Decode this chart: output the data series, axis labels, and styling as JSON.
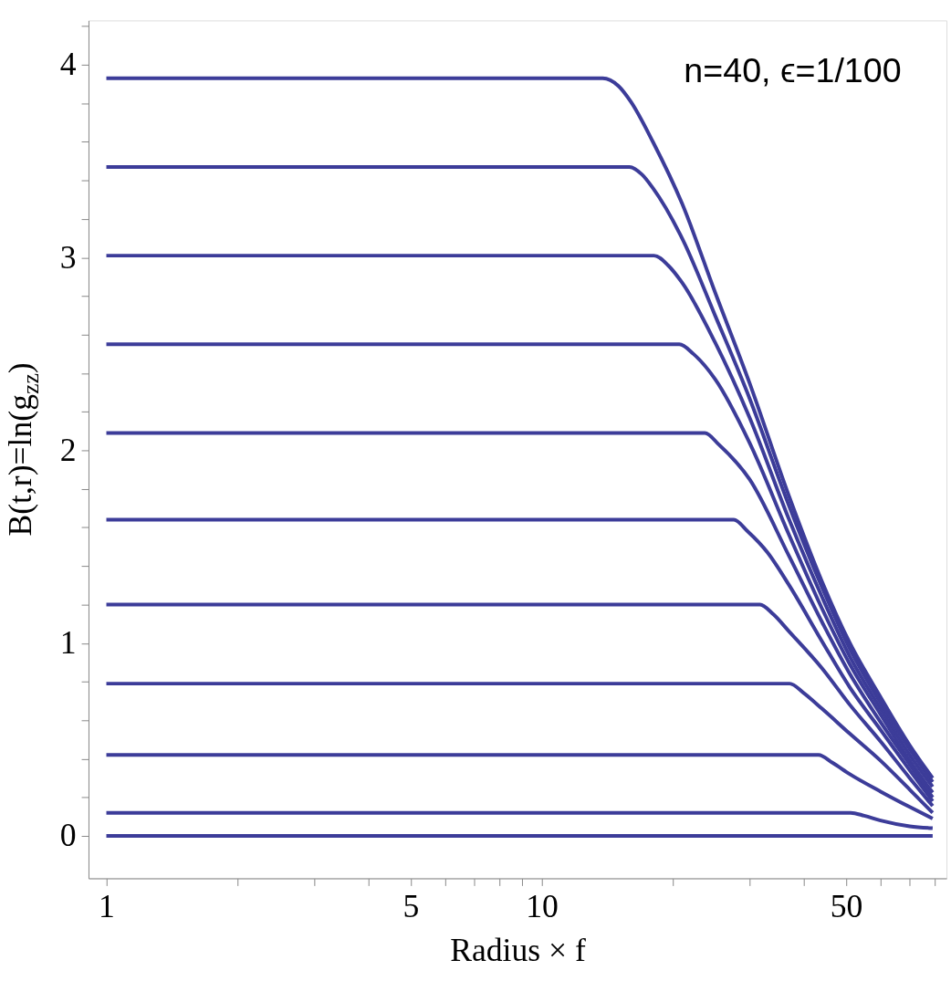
{
  "chart_data": {
    "type": "line",
    "xlabel": "Radius × f",
    "ylabel": "B(t,r)=ln(g$_{zz}$)",
    "annotations": [
      "n=40, ϵ=1/100"
    ],
    "log": "x",
    "xlim": [
      0.91,
      85
    ],
    "ylim": [
      -0.22,
      4.23
    ],
    "xticks": [
      1,
      {
        "value": 2,
        "label": null
      },
      {
        "value": 3,
        "label": null
      },
      {
        "value": 4,
        "label": null
      },
      5,
      {
        "value": 6,
        "label": null
      },
      {
        "value": 7,
        "label": null
      },
      {
        "value": 8,
        "label": null
      },
      {
        "value": 9,
        "label": null
      },
      10,
      {
        "value": 20,
        "label": null
      },
      {
        "value": 30,
        "label": null
      },
      {
        "value": 40,
        "label": null
      },
      50,
      {
        "value": 60,
        "label": null
      },
      {
        "value": 70,
        "label": null
      },
      {
        "value": 80,
        "label": null
      }
    ],
    "yticks": [
      0,
      {
        "value": 0.2,
        "label": null
      },
      {
        "value": 0.4,
        "label": null
      },
      {
        "value": 0.6,
        "label": null
      },
      {
        "value": 0.8,
        "label": null
      },
      1,
      {
        "value": 1.2,
        "label": null
      },
      {
        "value": 1.4,
        "label": null
      },
      {
        "value": 1.6,
        "label": null
      },
      {
        "value": 1.8,
        "label": null
      },
      2,
      {
        "value": 2.2,
        "label": null
      },
      {
        "value": 2.4,
        "label": null
      },
      {
        "value": 2.6,
        "label": null
      },
      {
        "value": 2.8,
        "label": null
      },
      3,
      {
        "value": 3.2,
        "label": null
      },
      {
        "value": 3.4,
        "label": null
      },
      {
        "value": 3.6,
        "label": null
      },
      {
        "value": 3.8,
        "label": null
      },
      4,
      {
        "value": 4.2,
        "label": null
      }
    ],
    "series": [
      {
        "color": "#3c3c99",
        "x": [
          1,
          13.8,
          15,
          16,
          18,
          21,
          25,
          30,
          37,
          44,
          51,
          60,
          70,
          79
        ],
        "values": [
          3.93,
          3.93,
          3.89,
          3.81,
          3.6,
          3.28,
          2.82,
          2.35,
          1.76,
          1.32,
          1.0,
          0.72,
          0.47,
          0.3
        ]
      },
      {
        "color": "#3c3c99",
        "x": [
          1,
          15.9,
          17,
          18,
          21,
          25,
          30,
          37,
          44,
          51,
          60,
          70,
          79
        ],
        "values": [
          3.47,
          3.47,
          3.43,
          3.36,
          3.1,
          2.7,
          2.27,
          1.71,
          1.29,
          0.97,
          0.69,
          0.45,
          0.28
        ]
      },
      {
        "color": "#3c3c99",
        "x": [
          1,
          18.1,
          19.5,
          21,
          25,
          30,
          37,
          44,
          51,
          60,
          70,
          79
        ],
        "values": [
          3.01,
          3.01,
          2.96,
          2.87,
          2.56,
          2.17,
          1.64,
          1.24,
          0.93,
          0.66,
          0.42,
          0.255
        ]
      },
      {
        "color": "#3c3c99",
        "x": [
          1,
          20.7,
          22.3,
          25,
          30,
          37,
          44,
          51,
          60,
          70,
          79
        ],
        "values": [
          2.55,
          2.55,
          2.5,
          2.37,
          2.04,
          1.56,
          1.18,
          0.89,
          0.63,
          0.39,
          0.225
        ]
      },
      {
        "color": "#3c3c99",
        "x": [
          1,
          23.7,
          25.5,
          30,
          37,
          44,
          51,
          60,
          70,
          79
        ],
        "values": [
          2.09,
          2.09,
          2.03,
          1.85,
          1.45,
          1.11,
          0.84,
          0.59,
          0.37,
          0.2
        ]
      },
      {
        "color": "#3c3c99",
        "x": [
          1,
          27.6,
          29.7,
          33,
          37,
          44,
          51,
          60,
          70,
          79
        ],
        "values": [
          1.64,
          1.64,
          1.58,
          1.47,
          1.3,
          1.01,
          0.77,
          0.55,
          0.34,
          0.18
        ]
      },
      {
        "color": "#3c3c99",
        "x": [
          1,
          31.7,
          34,
          37,
          44,
          51,
          60,
          70,
          79
        ],
        "values": [
          1.2,
          1.2,
          1.15,
          1.06,
          0.87,
          0.68,
          0.49,
          0.3,
          0.155
        ]
      },
      {
        "color": "#3c3c99",
        "x": [
          1,
          37.1,
          40,
          44,
          51,
          60,
          70,
          79
        ],
        "values": [
          0.79,
          0.79,
          0.74,
          0.66,
          0.53,
          0.39,
          0.24,
          0.12
        ]
      },
      {
        "color": "#3c3c99",
        "x": [
          1,
          43.2,
          46.5,
          51,
          60,
          70,
          79
        ],
        "values": [
          0.42,
          0.42,
          0.38,
          0.32,
          0.23,
          0.15,
          0.09
        ]
      },
      {
        "color": "#3c3c99",
        "x": [
          1,
          51.2,
          55,
          60,
          70,
          79
        ],
        "values": [
          0.12,
          0.12,
          0.105,
          0.08,
          0.05,
          0.04
        ]
      },
      {
        "color": "#3c3c99",
        "x": [
          1,
          79
        ],
        "values": [
          0,
          0
        ]
      }
    ]
  }
}
